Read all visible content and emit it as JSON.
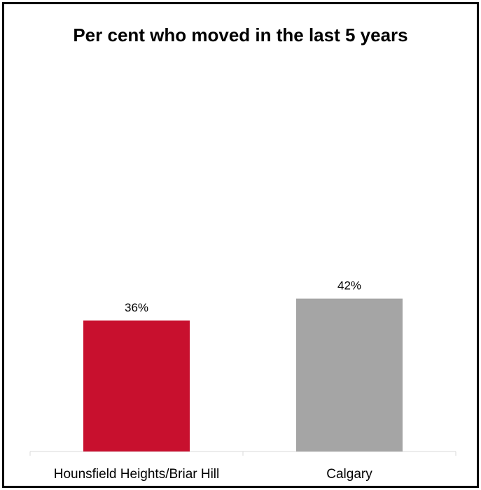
{
  "chart_data": {
    "type": "bar",
    "title": "Per cent who moved in the last 5 years",
    "xlabel": "",
    "ylabel": "",
    "categories": [
      "Hounsfield Heights/Briar Hill",
      "Calgary"
    ],
    "values": [
      36,
      42
    ],
    "value_labels": [
      "36%",
      "42%"
    ],
    "ylim": [
      0,
      72
    ],
    "grid": false,
    "legend": "none",
    "colors": [
      "#c8102e",
      "#a5a5a5"
    ]
  }
}
